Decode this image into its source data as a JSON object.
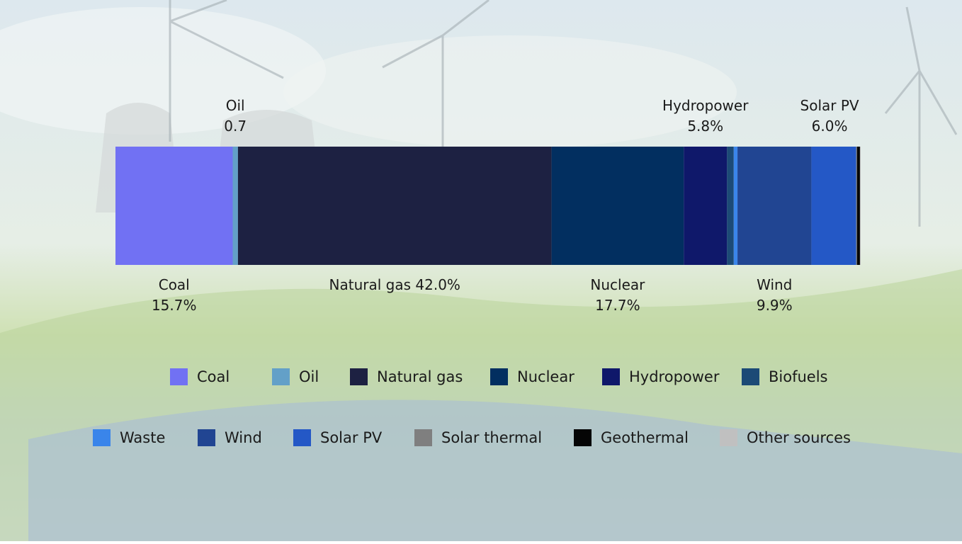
{
  "chart_data": {
    "type": "bar",
    "orientation": "horizontal-stacked",
    "title": "",
    "series": [
      {
        "name": "Coal",
        "value": 15.7,
        "color": "#7171f3"
      },
      {
        "name": "Oil",
        "value": 0.7,
        "color": "#63a0c8"
      },
      {
        "name": "Natural gas",
        "value": 42.0,
        "color": "#1d2142"
      },
      {
        "name": "Nuclear",
        "value": 17.7,
        "color": "#022f60"
      },
      {
        "name": "Hydropower",
        "value": 5.8,
        "color": "#0f186a"
      },
      {
        "name": "Biofuels",
        "value": 0.9,
        "color": "#1c4a76"
      },
      {
        "name": "Waste",
        "value": 0.5,
        "color": "#3a85ea"
      },
      {
        "name": "Wind",
        "value": 9.9,
        "color": "#214592"
      },
      {
        "name": "Solar PV",
        "value": 6.0,
        "color": "#2458c6"
      },
      {
        "name": "Solar thermal",
        "value": 0.1,
        "color": "#7f7f7f"
      },
      {
        "name": "Geothermal",
        "value": 0.4,
        "color": "#050505"
      },
      {
        "name": "Other sources",
        "value": 0.1,
        "color": "#c0c0c0"
      }
    ],
    "data_labels": [
      {
        "series": "Oil",
        "lines": [
          "Oil",
          "0.7"
        ],
        "position": "above"
      },
      {
        "series": "Hydropower",
        "lines": [
          "Hydropower",
          "5.8%"
        ],
        "position": "above"
      },
      {
        "series": "Solar PV",
        "lines": [
          "Solar PV",
          "6.0%"
        ],
        "position": "above"
      },
      {
        "series": "Coal",
        "lines": [
          "Coal",
          "15.7%"
        ],
        "position": "below"
      },
      {
        "series": "Natural gas",
        "lines": [
          "Natural gas 42.0%"
        ],
        "position": "below"
      },
      {
        "series": "Nuclear",
        "lines": [
          "Nuclear",
          "17.7%"
        ],
        "position": "below"
      },
      {
        "series": "Wind",
        "lines": [
          "Wind",
          "9.9%"
        ],
        "position": "below"
      }
    ],
    "legend": {
      "placement": "bottom",
      "rows": [
        [
          "Coal",
          "Oil",
          "Natural gas",
          "Nuclear",
          "Hydropower",
          "Biofuels"
        ],
        [
          "Waste",
          "Wind",
          "Solar PV",
          "Solar thermal",
          "Geothermal",
          "Other sources"
        ]
      ]
    }
  }
}
